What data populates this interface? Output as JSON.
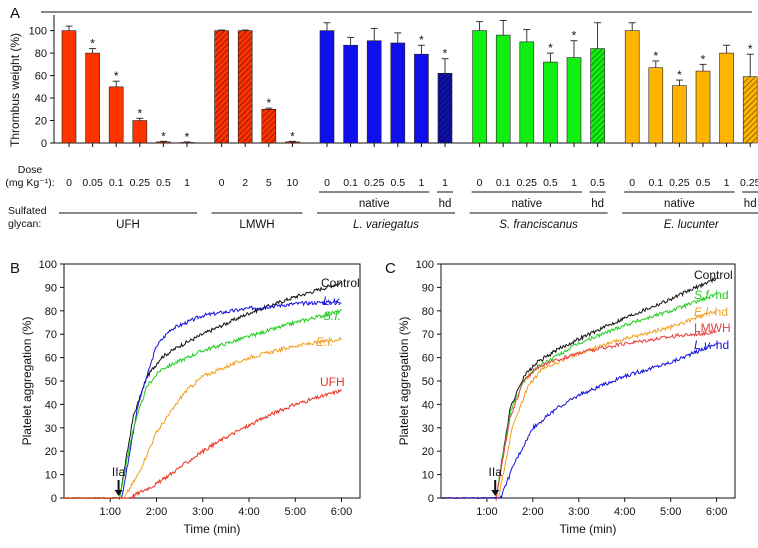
{
  "colors": {
    "ufh": "#ff3300",
    "lmwh": "#ff3300",
    "lv": "#1010ee",
    "sf": "#11ee11",
    "el": "#ffb400",
    "lvhd": "#101088",
    "control": "#111111",
    "ufh_line": "#ee3322",
    "lmwh_line": "#e84040",
    "lv_line": "#1515dd",
    "sf_line": "#22cc22",
    "el_line": "#f0a020"
  },
  "chart_data": [
    {
      "panel": "A",
      "type": "bar",
      "ylabel": "Thrombus weight (%)",
      "ylim": [
        0,
        105
      ],
      "yticks": [
        0,
        20,
        40,
        60,
        80,
        100
      ],
      "dose_label_line1": "Dose",
      "dose_label_line2": "(mg Kg⁻¹):",
      "glycan_label_line1": "Sulfated",
      "glycan_label_line2": "glycan:",
      "groups": [
        {
          "label": "UFH",
          "italic": false,
          "sublabel": "",
          "hd_label": "",
          "color_key": "ufh",
          "hatched": false,
          "doses": [
            "0",
            "0.05",
            "0.1",
            "0.25",
            "0.5",
            "1"
          ],
          "values": [
            100,
            80,
            50,
            20,
            1,
            0.5
          ],
          "errors": [
            4,
            4,
            5,
            2,
            0.5,
            0.5
          ],
          "stars": [
            false,
            true,
            true,
            true,
            true,
            true
          ]
        },
        {
          "label": "LMWH",
          "italic": false,
          "sublabel": "",
          "hd_label": "",
          "color_key": "lmwh",
          "hatched": true,
          "doses": [
            "0",
            "2",
            "5",
            "10"
          ],
          "values": [
            100,
            100,
            30,
            1
          ],
          "errors": [
            0.5,
            0.5,
            1,
            0.5
          ],
          "stars": [
            false,
            false,
            true,
            true
          ]
        },
        {
          "label": "L. variegatus",
          "italic": true,
          "sublabel": "native",
          "hd_label": "hd",
          "color_key": "lv",
          "hd_color_key": "lvhd",
          "doses": [
            "0",
            "0.1",
            "0.25",
            "0.5",
            "1"
          ],
          "values": [
            100,
            87,
            91,
            89,
            79
          ],
          "errors": [
            7,
            7,
            11,
            9,
            8
          ],
          "stars": [
            false,
            false,
            false,
            false,
            true
          ],
          "hd_dose": "1",
          "hd_value": 62,
          "hd_error": 13,
          "hd_star": true
        },
        {
          "label": "S. franciscanus",
          "italic": true,
          "sublabel": "native",
          "hd_label": "hd",
          "color_key": "sf",
          "hd_color_key": "sf",
          "doses": [
            "0",
            "0.1",
            "0.25",
            "0.5",
            "1"
          ],
          "values": [
            100,
            96,
            90,
            72,
            76
          ],
          "errors": [
            8,
            13,
            11,
            8,
            15
          ],
          "stars": [
            false,
            false,
            false,
            true,
            true
          ],
          "hd_dose": "0.5",
          "hd_value": 84,
          "hd_error": 23,
          "hd_star": false
        },
        {
          "label": "E. lucunter",
          "italic": true,
          "sublabel": "native",
          "hd_label": "hd",
          "color_key": "el",
          "hd_color_key": "el",
          "doses": [
            "0",
            "0.1",
            "0.25",
            "0.5",
            "1"
          ],
          "values": [
            100,
            67,
            51,
            64,
            80
          ],
          "errors": [
            7,
            6,
            5,
            6,
            7
          ],
          "stars": [
            false,
            true,
            true,
            true,
            false
          ],
          "hd_dose": "0.25",
          "hd_value": 59,
          "hd_error": 20,
          "hd_star": true
        }
      ]
    },
    {
      "panel": "B",
      "type": "line",
      "xlabel": "Time (min)",
      "ylabel": "Platelet aggregation (%)",
      "xlim": [
        0,
        6.4
      ],
      "ylim": [
        0,
        100
      ],
      "xticks": [
        1,
        2,
        3,
        4,
        5,
        6
      ],
      "xtick_labels": [
        "1:00",
        "2:00",
        "3:00",
        "4:00",
        "5:00",
        "6:00"
      ],
      "yticks": [
        0,
        10,
        20,
        30,
        40,
        50,
        60,
        70,
        80,
        90,
        100
      ],
      "arrow_label": "IIa",
      "arrow_x": 1.18,
      "series": [
        {
          "name": "Control",
          "italic": false,
          "color_key": "control",
          "onset": 1.2,
          "plateau_x": 2.1,
          "plateau_y": 60,
          "end_y": 92,
          "x": [
            0,
            1.2,
            1.5,
            1.8,
            2.1,
            2.5,
            3,
            4,
            5,
            6
          ],
          "y": [
            0,
            0,
            35,
            52,
            60,
            65,
            70,
            79,
            86,
            92
          ]
        },
        {
          "name": "L.v.",
          "italic": true,
          "color_key": "lv_line",
          "onset": 1.25,
          "plateau_x": 2.3,
          "plateau_y": 72,
          "end_y": 84,
          "x": [
            0,
            1.25,
            1.6,
            2,
            2.3,
            3,
            4,
            5,
            6
          ],
          "y": [
            0,
            0,
            40,
            65,
            72,
            78,
            81,
            83,
            84
          ]
        },
        {
          "name": "S.f.",
          "italic": true,
          "color_key": "sf_line",
          "onset": 1.2,
          "plateau_x": 2.1,
          "plateau_y": 55,
          "end_y": 80,
          "x": [
            0,
            1.2,
            1.5,
            1.8,
            2.1,
            3,
            4,
            5,
            6
          ],
          "y": [
            0,
            0,
            30,
            48,
            55,
            63,
            69,
            75,
            80
          ]
        },
        {
          "name": "E.l.",
          "italic": true,
          "color_key": "el_line",
          "onset": 1.3,
          "plateau_x": 2.6,
          "plateau_y": 45,
          "end_y": 68,
          "x": [
            0,
            1.3,
            1.6,
            2,
            2.6,
            3,
            4,
            5,
            6
          ],
          "y": [
            0,
            0,
            10,
            28,
            45,
            52,
            60,
            65,
            68
          ]
        },
        {
          "name": "UFH",
          "italic": false,
          "color_key": "ufh_line",
          "onset": 1.4,
          "plateau_x": 6,
          "plateau_y": 46,
          "end_y": 46,
          "x": [
            0,
            1.4,
            2,
            2.5,
            3,
            3.5,
            4,
            4.5,
            5,
            5.5,
            6
          ],
          "y": [
            0,
            0,
            6,
            13,
            20,
            26,
            31,
            36,
            40,
            43,
            46
          ]
        }
      ]
    },
    {
      "panel": "C",
      "type": "line",
      "xlabel": "Time (min)",
      "ylabel": "Platelet aggregation (%)",
      "xlim": [
        0,
        6.4
      ],
      "ylim": [
        0,
        100
      ],
      "xticks": [
        1,
        2,
        3,
        4,
        5,
        6
      ],
      "xtick_labels": [
        "1:00",
        "2:00",
        "3:00",
        "4:00",
        "5:00",
        "6:00"
      ],
      "yticks": [
        0,
        10,
        20,
        30,
        40,
        50,
        60,
        70,
        80,
        90,
        100
      ],
      "arrow_label": "IIa",
      "arrow_x": 1.18,
      "series": [
        {
          "name": "Control",
          "suffix": "",
          "italic": false,
          "color_key": "control",
          "x": [
            0,
            1.2,
            1.5,
            1.8,
            2.1,
            2.5,
            3,
            4,
            5,
            6
          ],
          "y": [
            0,
            0,
            38,
            52,
            58,
            63,
            68,
            77,
            85,
            94
          ]
        },
        {
          "name": "S.f.",
          "suffix": " hd",
          "italic": true,
          "color_key": "sf_line",
          "x": [
            0,
            1.2,
            1.5,
            1.8,
            2.1,
            3,
            4,
            5,
            6
          ],
          "y": [
            0,
            0,
            36,
            50,
            56,
            66,
            74,
            80,
            87
          ]
        },
        {
          "name": "E.l.",
          "suffix": " hd",
          "italic": true,
          "color_key": "el_line",
          "x": [
            0,
            1.25,
            1.55,
            1.9,
            2.2,
            3,
            4,
            5,
            6
          ],
          "y": [
            0,
            0,
            30,
            48,
            55,
            62,
            68,
            73,
            80
          ]
        },
        {
          "name": "LMWH",
          "suffix": "",
          "italic": false,
          "color_key": "lmwh_line",
          "x": [
            0,
            1.2,
            1.5,
            1.8,
            2.1,
            3,
            4,
            5,
            6
          ],
          "y": [
            0,
            0,
            34,
            50,
            56,
            62,
            66,
            69,
            71
          ]
        },
        {
          "name": "L.v.",
          "suffix": " hd",
          "italic": true,
          "color_key": "lv_line",
          "x": [
            0,
            1.3,
            1.6,
            2,
            2.5,
            3,
            4,
            5,
            6
          ],
          "y": [
            0,
            0,
            15,
            30,
            38,
            44,
            52,
            58,
            66
          ]
        }
      ]
    }
  ]
}
